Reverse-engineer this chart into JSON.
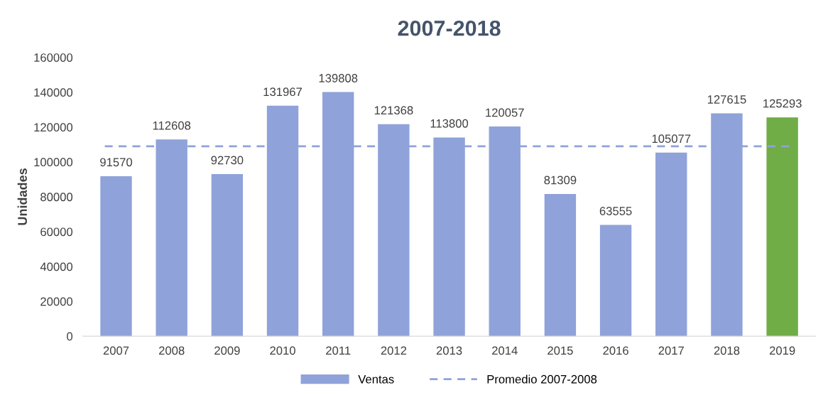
{
  "chart_data": {
    "type": "bar",
    "title": "2007-2018",
    "ylabel": "Unidades",
    "categories": [
      "2007",
      "2008",
      "2009",
      "2010",
      "2011",
      "2012",
      "2013",
      "2014",
      "2015",
      "2016",
      "2017",
      "2018",
      "2019"
    ],
    "series": [
      {
        "name": "Ventas",
        "color": "#8fa2d9",
        "colors": [
          "#8fa2d9",
          "#8fa2d9",
          "#8fa2d9",
          "#8fa2d9",
          "#8fa2d9",
          "#8fa2d9",
          "#8fa2d9",
          "#8fa2d9",
          "#8fa2d9",
          "#8fa2d9",
          "#8fa2d9",
          "#8fa2d9",
          "#70ad47"
        ],
        "values": [
          91570,
          112608,
          92730,
          131967,
          139808,
          121368,
          113800,
          120057,
          81309,
          63555,
          105077,
          127615,
          125293
        ]
      }
    ],
    "ref_lines": [
      {
        "axis": "y",
        "value": 109000,
        "label": "Promedio 2007-2008",
        "color": "#8fa2d9",
        "line_style": "dashed"
      }
    ],
    "ylim": [
      0,
      160000
    ],
    "yticks": [
      0,
      20000,
      40000,
      60000,
      80000,
      100000,
      120000,
      140000,
      160000
    ],
    "data_labels": true,
    "grid": false,
    "legend": "bottom"
  }
}
